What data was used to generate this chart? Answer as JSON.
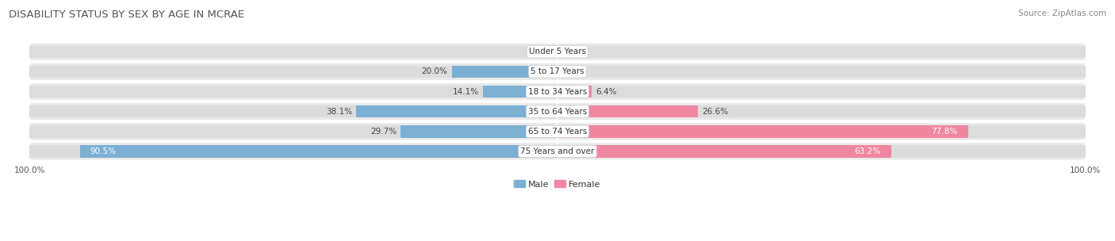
{
  "title": "DISABILITY STATUS BY SEX BY AGE IN MCRAE",
  "source": "Source: ZipAtlas.com",
  "categories": [
    "Under 5 Years",
    "5 to 17 Years",
    "18 to 34 Years",
    "35 to 64 Years",
    "65 to 74 Years",
    "75 Years and over"
  ],
  "male_values": [
    0.0,
    20.0,
    14.1,
    38.1,
    29.7,
    90.5
  ],
  "female_values": [
    0.0,
    0.0,
    6.4,
    26.6,
    77.8,
    63.2
  ],
  "male_color": "#7bafd4",
  "female_color": "#f087a0",
  "male_label": "Male",
  "female_label": "Female",
  "bar_bg_color": "#dcdcdc",
  "bar_row_bg": "#e8e8e8",
  "xlim": 100.0,
  "background_color": "#ffffff",
  "title_fontsize": 9.5,
  "source_fontsize": 7.5,
  "label_fontsize": 7.5,
  "axis_label_fontsize": 7.5
}
